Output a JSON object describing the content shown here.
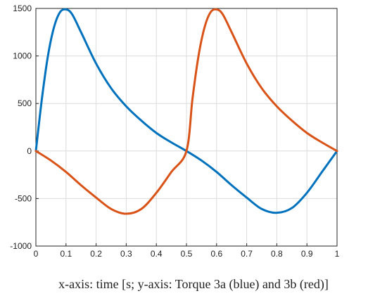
{
  "caption": "x-axis: time [s; y-axis: Torque 3a (blue) and 3b (red)]",
  "chart_data": {
    "type": "line",
    "title": "",
    "xlabel": "",
    "ylabel": "",
    "xlim": [
      0,
      1
    ],
    "ylim": [
      -1000,
      1500
    ],
    "grid": true,
    "x_ticks": [
      0,
      0.1,
      0.2,
      0.3,
      0.4,
      0.5,
      0.6,
      0.7,
      0.8,
      0.9,
      1
    ],
    "x_tick_labels": [
      "0",
      "0.1",
      "0.2",
      "0.3",
      "0.4",
      "0.5",
      "0.6",
      "0.7",
      "0.8",
      "0.9",
      "1"
    ],
    "y_ticks": [
      -1000,
      -500,
      0,
      500,
      1000,
      1500
    ],
    "y_tick_labels": [
      "-1000",
      "-500",
      "0",
      "500",
      "1000",
      "1500"
    ],
    "series": [
      {
        "color": "#0072BD",
        "x": [
          0,
          0.02,
          0.04,
          0.06,
          0.08,
          0.1,
          0.12,
          0.15,
          0.2,
          0.25,
          0.3,
          0.35,
          0.4,
          0.45,
          0.5,
          0.55,
          0.6,
          0.65,
          0.7,
          0.75,
          0.8,
          0.85,
          0.9,
          0.95,
          1.0
        ],
        "y": [
          0,
          550,
          1000,
          1300,
          1460,
          1490,
          1440,
          1250,
          920,
          660,
          470,
          320,
          190,
          90,
          0,
          -100,
          -220,
          -360,
          -490,
          -610,
          -650,
          -600,
          -440,
          -220,
          0
        ]
      },
      {
        "color": "#D95319",
        "x": [
          0,
          0.05,
          0.1,
          0.15,
          0.2,
          0.25,
          0.3,
          0.35,
          0.4,
          0.45,
          0.5,
          0.52,
          0.54,
          0.56,
          0.58,
          0.6,
          0.62,
          0.65,
          0.7,
          0.75,
          0.8,
          0.85,
          0.9,
          0.95,
          1.0
        ],
        "y": [
          0,
          -100,
          -220,
          -360,
          -490,
          -610,
          -660,
          -610,
          -440,
          -220,
          0,
          550,
          1000,
          1300,
          1460,
          1490,
          1440,
          1250,
          920,
          660,
          470,
          320,
          190,
          90,
          0
        ]
      }
    ]
  }
}
